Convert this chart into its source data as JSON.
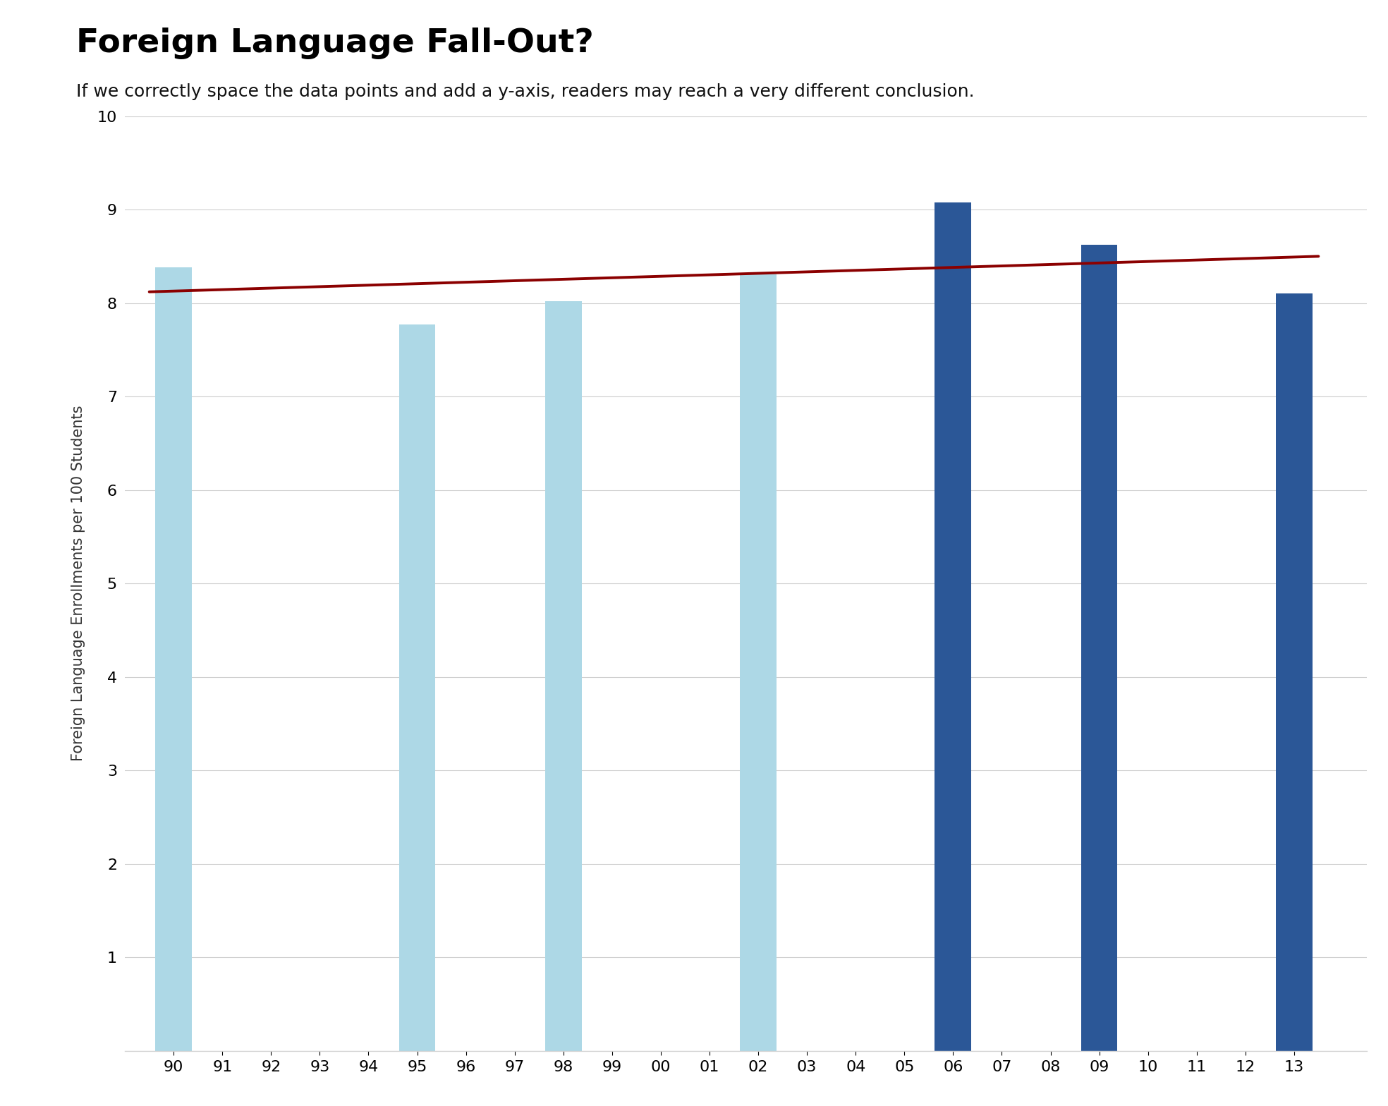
{
  "title": "Foreign Language Fall-Out?",
  "subtitle": "If we correctly space the data points and add a y-axis, readers may reach a very different conclusion.",
  "ylabel": "Foreign Language Enrollments per 100 Students",
  "bar_years": [
    90,
    95,
    98,
    102,
    106,
    109,
    113
  ],
  "bar_labels": [
    "90",
    "95",
    "98",
    "02",
    "06",
    "09",
    "13"
  ],
  "bar_values": [
    8.38,
    7.77,
    8.02,
    8.31,
    9.08,
    8.62,
    8.1
  ],
  "bar_colors": [
    "#ADD8E6",
    "#ADD8E6",
    "#ADD8E6",
    "#ADD8E6",
    "#2B5797",
    "#2B5797",
    "#2B5797"
  ],
  "trend_color": "#8B0000",
  "trend_x": [
    89.5,
    113.5
  ],
  "trend_y": [
    8.12,
    8.5
  ],
  "ylim": [
    0,
    10
  ],
  "yticks": [
    1,
    2,
    3,
    4,
    5,
    6,
    7,
    8,
    9,
    10
  ],
  "all_x_labels": [
    "90",
    "91",
    "92",
    "93",
    "94",
    "95",
    "96",
    "97",
    "98",
    "99",
    "00",
    "01",
    "02",
    "03",
    "04",
    "05",
    "06",
    "07",
    "08",
    "09",
    "10",
    "11",
    "12",
    "13"
  ],
  "all_x_positions": [
    90,
    91,
    92,
    93,
    94,
    95,
    96,
    97,
    98,
    99,
    100,
    101,
    102,
    103,
    104,
    105,
    106,
    107,
    108,
    109,
    110,
    111,
    112,
    113
  ],
  "xlim": [
    89.0,
    114.5
  ],
  "background_color": "#ffffff",
  "grid_color": "#d0d0d0",
  "title_fontsize": 34,
  "subtitle_fontsize": 18,
  "ylabel_fontsize": 15,
  "tick_fontsize": 16,
  "bar_width": 0.75
}
